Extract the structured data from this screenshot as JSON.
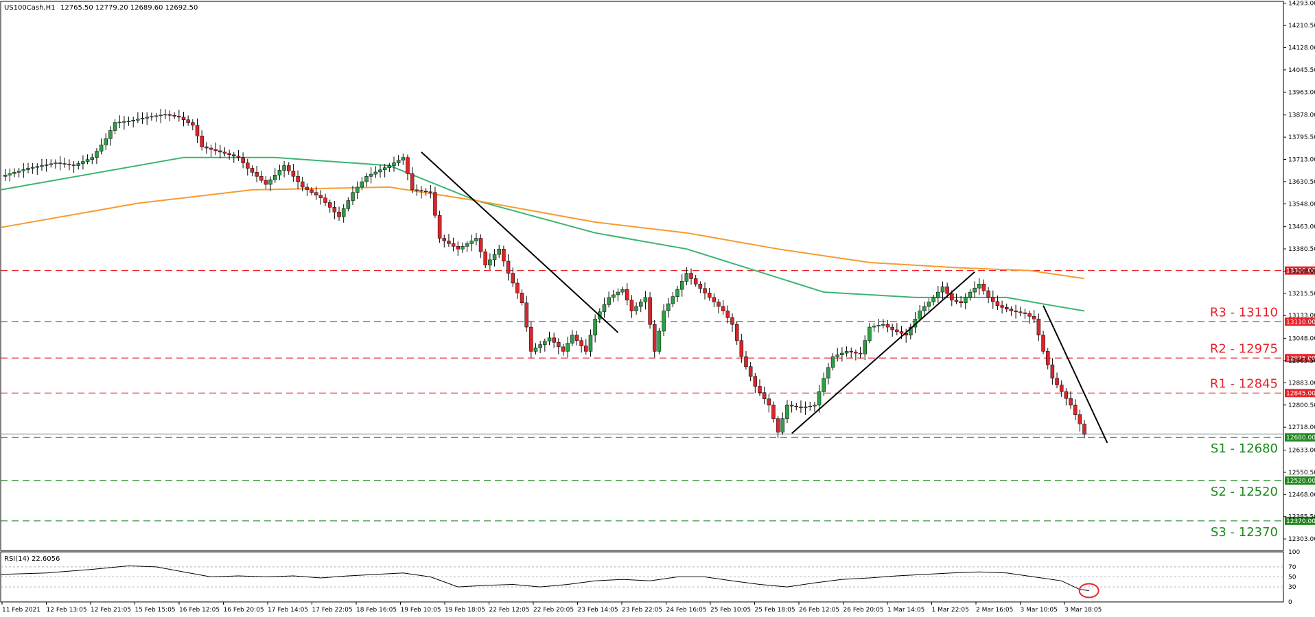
{
  "header": {
    "symbol": "US100Cash,H1",
    "ohlc": "12765.50 12779.20 12689.60 12692.50"
  },
  "rsi_panel": {
    "label": "RSI(14) 22.6056",
    "levels": [
      "70",
      "50",
      "30",
      "0",
      "100"
    ]
  },
  "chart_data": {
    "type": "candlestick",
    "symbol": "US100Cash,H1",
    "ylim": [
      12260,
      14300
    ],
    "price_ticks": [
      "14293.00",
      "14210.50",
      "14128.00",
      "14045.50",
      "13963.00",
      "13878.00",
      "13795.50",
      "13713.00",
      "13630.50",
      "13548.00",
      "13463.00",
      "13380.50",
      "13298.00",
      "13215.50",
      "13133.00",
      "13048.00",
      "12965.50",
      "12883.00",
      "12800.50",
      "12718.00",
      "12633.00",
      "12550.50",
      "12468.00",
      "12385.50",
      "12303.00"
    ],
    "time_labels": [
      "11 Feb 2021",
      "12 Feb 13:05",
      "12 Feb 21:05",
      "15 Feb 15:05",
      "16 Feb 12:05",
      "16 Feb 20:05",
      "17 Feb 14:05",
      "17 Feb 22:05",
      "18 Feb 16:05",
      "19 Feb 10:05",
      "19 Feb 18:05",
      "22 Feb 12:05",
      "22 Feb 20:05",
      "23 Feb 14:05",
      "23 Feb 22:05",
      "24 Feb 16:05",
      "25 Feb 10:05",
      "25 Feb 18:05",
      "26 Feb 12:05",
      "26 Feb 20:05",
      "1 Mar 14:05",
      "1 Mar 22:05",
      "2 Mar 16:05",
      "3 Mar 10:05",
      "3 Mar 18:05"
    ],
    "levels": [
      {
        "label": "R3 - 13110",
        "value": 13110,
        "tag": "13110.00",
        "color": "#e8232a"
      },
      {
        "label": "R2 - 12975",
        "value": 12975,
        "tag": "12975.00",
        "color": "#e8232a"
      },
      {
        "label": "R1 - 12845",
        "value": 12845,
        "tag": "12845.00",
        "color": "#e8232a"
      },
      {
        "label": "S1 - 12680",
        "value": 12680,
        "tag": "12680.00",
        "color": "#1d8a1d"
      },
      {
        "label": "S2 - 12520",
        "value": 12520,
        "tag": "12520.00",
        "color": "#1d8a1d"
      },
      {
        "label": "S3 - 12370",
        "value": 12370,
        "tag": "12370.00",
        "color": "#1d8a1d"
      }
    ],
    "extra_level": {
      "value": 13300,
      "tag": "13300.00",
      "color": "#e8232a"
    },
    "current_price": {
      "value": 12692.5,
      "tag": "12692.50"
    },
    "close_path": [
      [
        0,
        13650
      ],
      [
        6,
        13680
      ],
      [
        12,
        13700
      ],
      [
        16,
        13690
      ],
      [
        20,
        13720
      ],
      [
        23,
        13790
      ],
      [
        25,
        13850
      ],
      [
        28,
        13855
      ],
      [
        32,
        13870
      ],
      [
        36,
        13880
      ],
      [
        39,
        13870
      ],
      [
        42,
        13840
      ],
      [
        44,
        13760
      ],
      [
        48,
        13740
      ],
      [
        52,
        13720
      ],
      [
        54,
        13680
      ],
      [
        58,
        13620
      ],
      [
        62,
        13690
      ],
      [
        66,
        13610
      ],
      [
        70,
        13570
      ],
      [
        74,
        13500
      ],
      [
        77,
        13590
      ],
      [
        80,
        13650
      ],
      [
        85,
        13690
      ],
      [
        88,
        13720
      ],
      [
        90,
        13600
      ],
      [
        94,
        13590
      ],
      [
        96,
        13420
      ],
      [
        100,
        13380
      ],
      [
        104,
        13420
      ],
      [
        106,
        13320
      ],
      [
        109,
        13380
      ],
      [
        111,
        13290
      ],
      [
        114,
        13180
      ],
      [
        116,
        13000
      ],
      [
        120,
        13050
      ],
      [
        123,
        13000
      ],
      [
        125,
        13060
      ],
      [
        128,
        13000
      ],
      [
        130,
        13120
      ],
      [
        133,
        13200
      ],
      [
        136,
        13230
      ],
      [
        138,
        13150
      ],
      [
        141,
        13200
      ],
      [
        143,
        13000
      ],
      [
        145,
        13150
      ],
      [
        148,
        13230
      ],
      [
        150,
        13290
      ],
      [
        152,
        13250
      ],
      [
        155,
        13200
      ],
      [
        158,
        13150
      ],
      [
        160,
        13100
      ],
      [
        162,
        12980
      ],
      [
        165,
        12870
      ],
      [
        168,
        12800
      ],
      [
        170,
        12700
      ],
      [
        172,
        12800
      ],
      [
        175,
        12790
      ],
      [
        178,
        12800
      ],
      [
        180,
        12900
      ],
      [
        182,
        12980
      ],
      [
        185,
        13000
      ],
      [
        188,
        12990
      ],
      [
        190,
        13090
      ],
      [
        193,
        13100
      ],
      [
        195,
        13080
      ],
      [
        198,
        13060
      ],
      [
        201,
        13150
      ],
      [
        204,
        13200
      ],
      [
        206,
        13240
      ],
      [
        208,
        13190
      ],
      [
        210,
        13180
      ],
      [
        212,
        13220
      ],
      [
        214,
        13250
      ],
      [
        216,
        13200
      ],
      [
        218,
        13170
      ],
      [
        221,
        13150
      ],
      [
        224,
        13140
      ],
      [
        226,
        13120
      ],
      [
        228,
        13000
      ],
      [
        230,
        12900
      ],
      [
        232,
        12850
      ],
      [
        234,
        12800
      ],
      [
        236,
        12730
      ],
      [
        237,
        12692.5
      ]
    ],
    "ma_green": [
      [
        0,
        13600
      ],
      [
        40,
        13720
      ],
      [
        60,
        13720
      ],
      [
        85,
        13690
      ],
      [
        104,
        13560
      ],
      [
        130,
        13440
      ],
      [
        150,
        13380
      ],
      [
        165,
        13300
      ],
      [
        180,
        13220
      ],
      [
        200,
        13200
      ],
      [
        220,
        13200
      ],
      [
        230,
        13170
      ],
      [
        237,
        13150
      ]
    ],
    "ma_orange": [
      [
        0,
        13460
      ],
      [
        30,
        13550
      ],
      [
        55,
        13600
      ],
      [
        85,
        13610
      ],
      [
        104,
        13560
      ],
      [
        130,
        13480
      ],
      [
        150,
        13440
      ],
      [
        170,
        13380
      ],
      [
        190,
        13330
      ],
      [
        210,
        13310
      ],
      [
        225,
        13300
      ],
      [
        237,
        13270
      ]
    ],
    "trendlines": [
      [
        [
          92,
          13740
        ],
        [
          135,
          13070
        ]
      ],
      [
        [
          173,
          12695
        ],
        [
          213,
          13295
        ]
      ],
      [
        [
          228,
          13170
        ],
        [
          242,
          12660
        ]
      ]
    ],
    "rsi": [
      [
        0,
        55
      ],
      [
        10,
        58
      ],
      [
        20,
        65
      ],
      [
        28,
        72
      ],
      [
        34,
        70
      ],
      [
        40,
        60
      ],
      [
        46,
        50
      ],
      [
        52,
        52
      ],
      [
        58,
        50
      ],
      [
        64,
        52
      ],
      [
        70,
        48
      ],
      [
        76,
        52
      ],
      [
        82,
        55
      ],
      [
        88,
        58
      ],
      [
        94,
        50
      ],
      [
        100,
        30
      ],
      [
        106,
        33
      ],
      [
        112,
        35
      ],
      [
        118,
        30
      ],
      [
        124,
        35
      ],
      [
        130,
        42
      ],
      [
        136,
        45
      ],
      [
        142,
        42
      ],
      [
        148,
        50
      ],
      [
        154,
        50
      ],
      [
        160,
        42
      ],
      [
        166,
        35
      ],
      [
        172,
        30
      ],
      [
        178,
        38
      ],
      [
        184,
        45
      ],
      [
        190,
        48
      ],
      [
        196,
        52
      ],
      [
        202,
        55
      ],
      [
        208,
        58
      ],
      [
        214,
        60
      ],
      [
        220,
        58
      ],
      [
        226,
        50
      ],
      [
        232,
        42
      ],
      [
        236,
        25
      ],
      [
        238,
        22.6
      ]
    ],
    "rsi_marker_note": "red circle around latest RSI value"
  }
}
